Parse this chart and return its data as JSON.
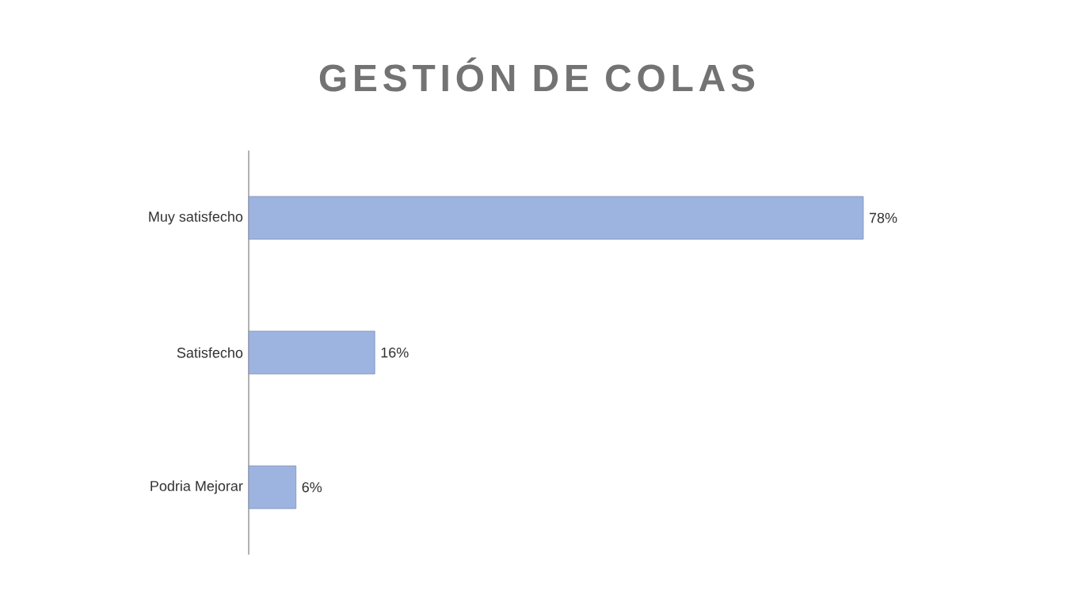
{
  "chart_data": {
    "type": "bar",
    "orientation": "horizontal",
    "title": "GESTIÓN DE COLAS",
    "categories": [
      "Muy satisfecho",
      "Satisfecho",
      "Podria Mejorar"
    ],
    "values": [
      78,
      16,
      6
    ],
    "value_labels": [
      "78%",
      "16%",
      "6%"
    ],
    "color": "#9db3e0"
  }
}
